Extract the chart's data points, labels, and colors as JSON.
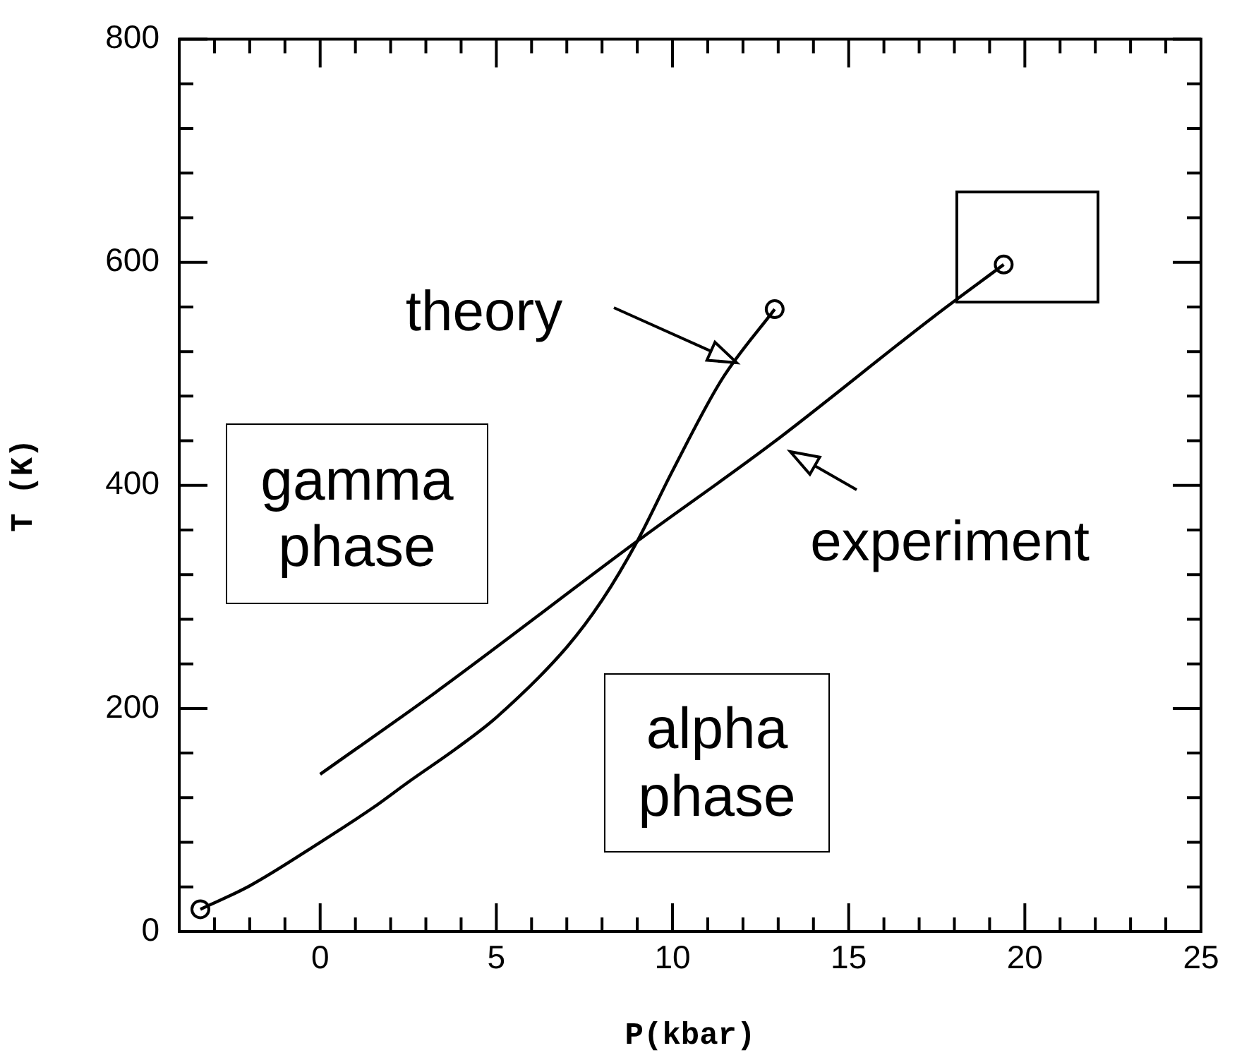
{
  "chart_data": {
    "type": "line",
    "xlabel": "P(kbar)",
    "ylabel": "T (K)",
    "xlim": [
      -4,
      25
    ],
    "ylim": [
      0,
      800
    ],
    "xticks": [
      {
        "value": -4,
        "label": null
      },
      {
        "value": -3,
        "label": null
      },
      {
        "value": -2,
        "label": null
      },
      {
        "value": -1,
        "label": null
      },
      0,
      {
        "value": 1,
        "label": null
      },
      {
        "value": 2,
        "label": null
      },
      {
        "value": 3,
        "label": null
      },
      {
        "value": 4,
        "label": null
      },
      5,
      {
        "value": 6,
        "label": null
      },
      {
        "value": 7,
        "label": null
      },
      {
        "value": 8,
        "label": null
      },
      {
        "value": 9,
        "label": null
      },
      10,
      {
        "value": 11,
        "label": null
      },
      {
        "value": 12,
        "label": null
      },
      {
        "value": 13,
        "label": null
      },
      {
        "value": 14,
        "label": null
      },
      15,
      {
        "value": 16,
        "label": null
      },
      {
        "value": 17,
        "label": null
      },
      {
        "value": 18,
        "label": null
      },
      {
        "value": 19,
        "label": null
      },
      20,
      {
        "value": 21,
        "label": null
      },
      {
        "value": 22,
        "label": null
      },
      {
        "value": 23,
        "label": null
      },
      {
        "value": 24,
        "label": null
      },
      25
    ],
    "yticks": [
      0,
      {
        "value": 40,
        "label": null
      },
      {
        "value": 80,
        "label": null
      },
      {
        "value": 120,
        "label": null
      },
      {
        "value": 160,
        "label": null
      },
      200,
      {
        "value": 240,
        "label": null
      },
      {
        "value": 280,
        "label": null
      },
      {
        "value": 320,
        "label": null
      },
      {
        "value": 360,
        "label": null
      },
      400,
      {
        "value": 440,
        "label": null
      },
      {
        "value": 480,
        "label": null
      },
      {
        "value": 520,
        "label": null
      },
      {
        "value": 560,
        "label": null
      },
      600,
      {
        "value": 640,
        "label": null
      },
      {
        "value": 680,
        "label": null
      },
      {
        "value": 720,
        "label": null
      },
      {
        "value": 760,
        "label": null
      },
      800
    ],
    "grid": false,
    "legend": "top right",
    "marker": "none",
    "line_style": "solid",
    "series": [
      {
        "name": "theory",
        "color": "#000000",
        "x": [
          -3.4,
          -2,
          0,
          1.5,
          2.5,
          3.9,
          5,
          7,
          8,
          9,
          10,
          11.4,
          12.9
        ],
        "values": [
          20,
          41,
          80,
          111,
          134,
          165,
          192,
          255,
          297,
          350,
          413,
          495,
          558
        ]
      },
      {
        "name": "experiment",
        "color": "#000000",
        "x": [
          0,
          3.3,
          9,
          12.8,
          17.4,
          19.4
        ],
        "values": [
          141,
          215,
          350,
          437,
          551,
          598
        ]
      },
      {
        "type": "scatter",
        "marker": "circle",
        "color": "#000000",
        "x": [
          -3.4,
          12.9,
          19.4
        ],
        "values": [
          20,
          558,
          598
        ]
      }
    ],
    "annotations": [
      "gamma\nphase",
      "alpha\nphase"
    ]
  }
}
